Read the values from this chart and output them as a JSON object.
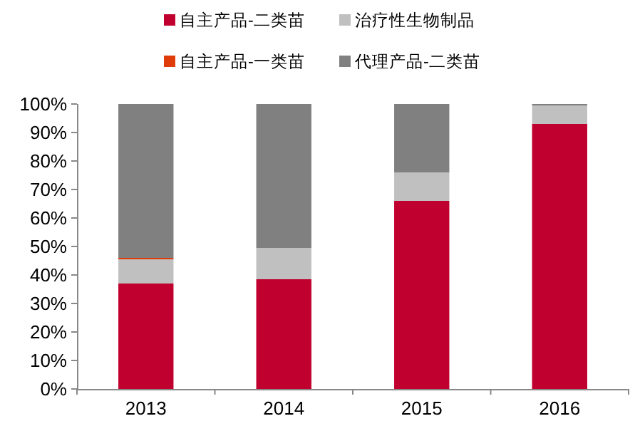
{
  "chart_data": {
    "type": "bar",
    "stacked": true,
    "categories": [
      "2013",
      "2014",
      "2015",
      "2016"
    ],
    "series": [
      {
        "name": "自主产品-二类苗",
        "color": "#c0002f",
        "values": [
          37,
          38.5,
          66,
          93
        ]
      },
      {
        "name": "治疗性生物制品",
        "color": "#c0c0c0",
        "values": [
          8.5,
          11,
          10,
          6.5
        ]
      },
      {
        "name": "自主产品-一类苗",
        "color": "#e03c0a",
        "values": [
          0.5,
          0,
          0,
          0
        ]
      },
      {
        "name": "代理产品-二类苗",
        "color": "#808080",
        "values": [
          54,
          50.5,
          24,
          0.5
        ]
      }
    ],
    "ylim": [
      0,
      100
    ],
    "yticks": [
      {
        "value": 0,
        "label": "0%"
      },
      {
        "value": 10,
        "label": "10%"
      },
      {
        "value": 20,
        "label": "20%"
      },
      {
        "value": 30,
        "label": "30%"
      },
      {
        "value": 40,
        "label": "40%"
      },
      {
        "value": 50,
        "label": "50%"
      },
      {
        "value": 60,
        "label": "60%"
      },
      {
        "value": 70,
        "label": "70%"
      },
      {
        "value": 80,
        "label": "80%"
      },
      {
        "value": 90,
        "label": "90%"
      },
      {
        "value": 100,
        "label": "100%"
      }
    ],
    "grid": false,
    "legend": "top"
  }
}
